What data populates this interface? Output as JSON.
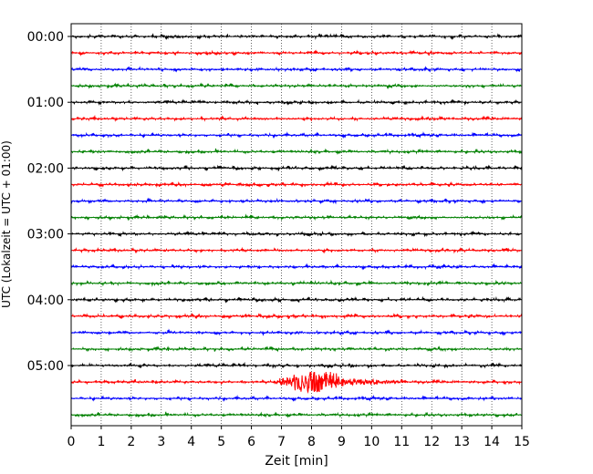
{
  "chart_data": {
    "type": "line",
    "title": "",
    "xlabel": "Zeit  [min]",
    "ylabel": "UTC (Lokalzeit = UTC + 01:00)",
    "xlim": [
      0,
      15
    ],
    "x_ticks": [
      0,
      1,
      2,
      3,
      4,
      5,
      6,
      7,
      8,
      9,
      10,
      11,
      12,
      13,
      14,
      15
    ],
    "x_tick_labels": [
      "0",
      "1",
      "2",
      "3",
      "4",
      "5",
      "6",
      "7",
      "8",
      "9",
      "10",
      "11",
      "12",
      "13",
      "14",
      "15"
    ],
    "y_tick_labels": [
      "00:00",
      "01:00",
      "02:00",
      "03:00",
      "04:00",
      "05:00"
    ],
    "grid": "vertical dotted",
    "trace_minutes": 15,
    "trace_colors": [
      "#000000",
      "#ff0000",
      "#0000ff",
      "#008000"
    ],
    "traces": [
      {
        "start": "00:00"
      },
      {
        "start": "00:15"
      },
      {
        "start": "00:30"
      },
      {
        "start": "00:45"
      },
      {
        "start": "01:00"
      },
      {
        "start": "01:15"
      },
      {
        "start": "01:30"
      },
      {
        "start": "01:45"
      },
      {
        "start": "02:00"
      },
      {
        "start": "02:15"
      },
      {
        "start": "02:30"
      },
      {
        "start": "02:45"
      },
      {
        "start": "03:00"
      },
      {
        "start": "03:15"
      },
      {
        "start": "03:30"
      },
      {
        "start": "03:45"
      },
      {
        "start": "04:00"
      },
      {
        "start": "04:15"
      },
      {
        "start": "04:30"
      },
      {
        "start": "04:45"
      },
      {
        "start": "05:00"
      },
      {
        "start": "05:15",
        "event": {
          "onset_min": 6.7,
          "peak_min": 8.0,
          "end_min": 11.2
        }
      },
      {
        "start": "05:30"
      },
      {
        "start": "05:45"
      }
    ]
  }
}
